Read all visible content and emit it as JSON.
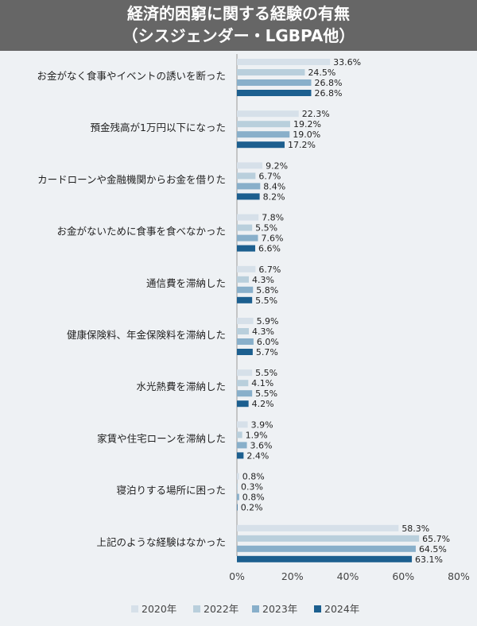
{
  "title": {
    "line1": "経済的困窮に関する経験の有無",
    "line2": "（シスジェンダー・LGBPA他）"
  },
  "colors": {
    "2020年": "#d6e0e9",
    "2022年": "#b9cfdc",
    "2023年": "#88afca",
    "2024年": "#1c5f8f"
  },
  "chart_data": {
    "type": "bar",
    "orientation": "horizontal",
    "categories": [
      "お金がなく食事やイベントの誘いを断った",
      "預金残高が1万円以下になった",
      "カードローンや金融機関からお金を借りた",
      "お金がないために食事を食べなかった",
      "通信費を滞納した",
      "健康保険料、年金保険料を滞納した",
      "水光熱費を滞納した",
      "家賃や住宅ローンを滞納した",
      "寝泊りする場所に困った",
      "上記のような経験はなかった"
    ],
    "series": [
      {
        "name": "2020年",
        "values": [
          33.6,
          22.3,
          9.2,
          7.8,
          6.7,
          5.9,
          5.5,
          3.9,
          0.8,
          58.3
        ]
      },
      {
        "name": "2022年",
        "values": [
          24.5,
          19.2,
          6.7,
          5.5,
          4.3,
          4.3,
          4.1,
          1.9,
          0.3,
          65.7
        ]
      },
      {
        "name": "2023年",
        "values": [
          26.8,
          19.0,
          8.4,
          7.6,
          5.8,
          6.0,
          5.5,
          3.6,
          0.8,
          64.5
        ]
      },
      {
        "name": "2024年",
        "values": [
          26.8,
          17.2,
          8.2,
          6.6,
          5.5,
          5.7,
          4.2,
          2.4,
          0.2,
          63.1
        ]
      }
    ],
    "value_labels": [
      [
        "33.6%",
        "22.3%",
        "9.2%",
        "7.8%",
        "6.7%",
        "5.9%",
        "5.5%",
        "3.9%",
        "0.8%",
        "58.3%"
      ],
      [
        "24.5%",
        "19.2%",
        "6.7%",
        "5.5%",
        "4.3%",
        "4.3%",
        "4.1%",
        "1.9%",
        "0.3%",
        "65.7%"
      ],
      [
        "26.8%",
        "19.0%",
        "8.4%",
        "7.6%",
        "5.8%",
        "6.0%",
        "5.5%",
        "3.6%",
        "0.8%",
        "64.5%"
      ],
      [
        "26.8%",
        "17.2%",
        "8.2%",
        "6.6%",
        "5.5%",
        "5.7%",
        "4.2%",
        "2.4%",
        "0.2%",
        "63.1%"
      ]
    ],
    "x_ticks": [
      "0%",
      "20%",
      "40%",
      "60%",
      "80%"
    ],
    "xlim": [
      0,
      80
    ],
    "legend_position": "bottom",
    "grid": false
  }
}
